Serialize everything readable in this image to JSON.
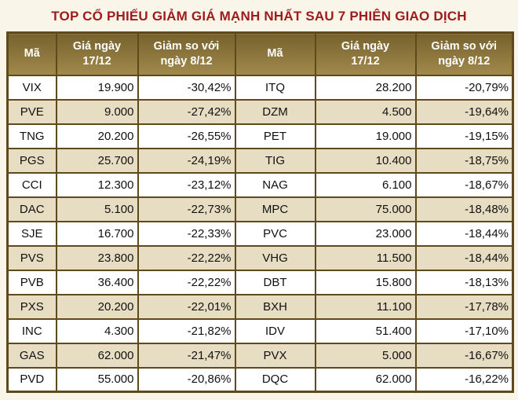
{
  "title": "TOP CỔ PHIẾU GIẢM GIÁ MẠNH NHẤT SAU 7 PHIÊN GIAO DỊCH",
  "colors": {
    "background": "#f9f5e8",
    "title": "#9e1b1c",
    "border": "#5e4a1d",
    "header_top": "#77622e",
    "header_bottom": "#a28a4c",
    "row_alt": "#e7ddc2",
    "row_white": "#ffffff",
    "text": "#111111"
  },
  "table": {
    "header": {
      "code": "Mã",
      "price_line1": "Giá ngày",
      "price_line2": "17/12",
      "change_line1": "Giảm so với",
      "change_line2": "ngày 8/12"
    }
  },
  "chart_data": {
    "type": "table",
    "title": "TOP CỔ PHIẾU GIẢM GIÁ MẠNH NHẤT SAU 7 PHIÊN GIAO DỊCH",
    "columns": [
      "Mã",
      "Giá ngày 17/12",
      "Giảm so với ngày 8/12"
    ],
    "layout": "two side-by-side tables, rows 0-12 left, rows 13-25 right",
    "rows": [
      [
        "VIX",
        "19.900",
        "-30,42%"
      ],
      [
        "PVE",
        "9.000",
        "-27,42%"
      ],
      [
        "TNG",
        "20.200",
        "-26,55%"
      ],
      [
        "PGS",
        "25.700",
        "-24,19%"
      ],
      [
        "CCI",
        "12.300",
        "-23,12%"
      ],
      [
        "DAC",
        "5.100",
        "-22,73%"
      ],
      [
        "SJE",
        "16.700",
        "-22,33%"
      ],
      [
        "PVS",
        "23.800",
        "-22,22%"
      ],
      [
        "PVB",
        "36.400",
        "-22,22%"
      ],
      [
        "PXS",
        "20.200",
        "-22,01%"
      ],
      [
        "INC",
        "4.300",
        "-21,82%"
      ],
      [
        "GAS",
        "62.000",
        "-21,47%"
      ],
      [
        "PVD",
        "55.000",
        "-20,86%"
      ],
      [
        "ITQ",
        "28.200",
        "-20,79%"
      ],
      [
        "DZM",
        "4.500",
        "-19,64%"
      ],
      [
        "PET",
        "19.000",
        "-19,15%"
      ],
      [
        "TIG",
        "10.400",
        "-18,75%"
      ],
      [
        "NAG",
        "6.100",
        "-18,67%"
      ],
      [
        "MPC",
        "75.000",
        "-18,48%"
      ],
      [
        "PVC",
        "23.000",
        "-18,44%"
      ],
      [
        "VHG",
        "11.500",
        "-18,44%"
      ],
      [
        "DBT",
        "15.800",
        "-18,13%"
      ],
      [
        "BXH",
        "11.100",
        "-17,78%"
      ],
      [
        "IDV",
        "51.400",
        "-17,10%"
      ],
      [
        "PVX",
        "5.000",
        "-16,67%"
      ],
      [
        "DQC",
        "62.000",
        "-16,22%"
      ]
    ]
  }
}
